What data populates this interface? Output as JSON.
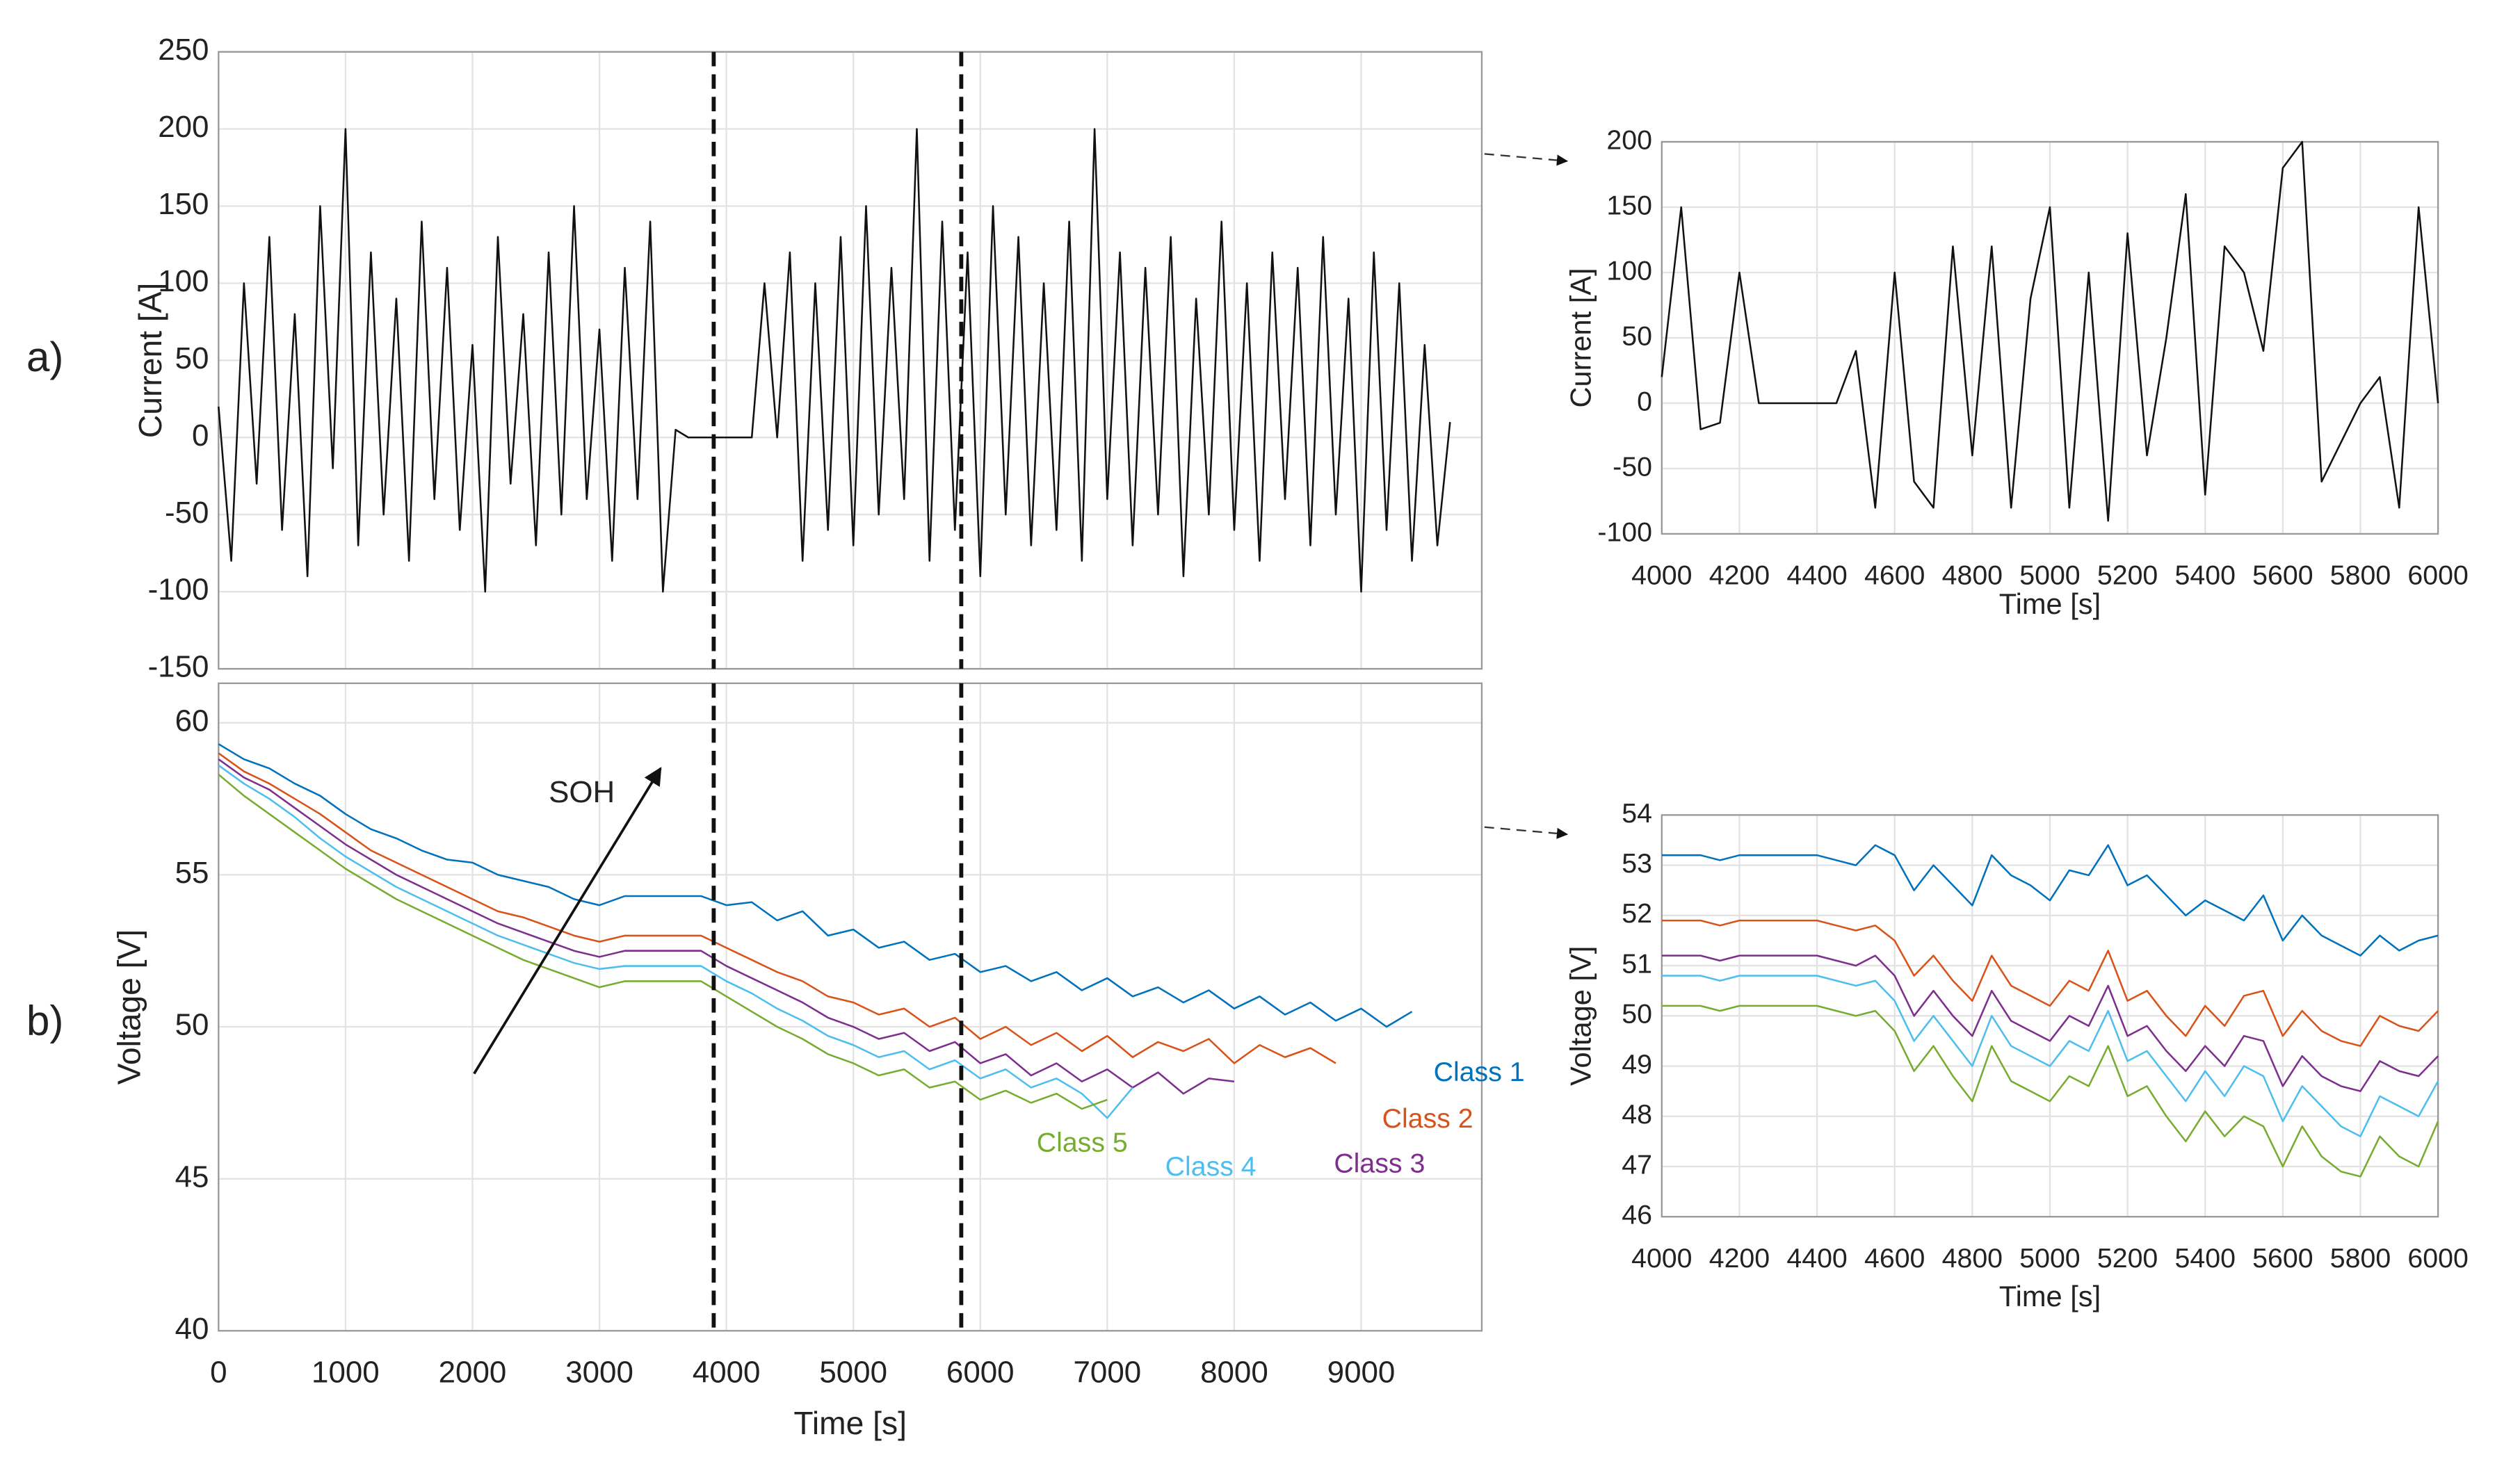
{
  "chart_data": [
    {
      "type": "line",
      "panel_label": "a)",
      "ylabel": "Current [A]",
      "xlim": [
        0,
        9950
      ],
      "xticks": [
        0,
        1000,
        2000,
        3000,
        4000,
        5000,
        6000,
        7000,
        8000,
        9000
      ],
      "ylim": [
        -150,
        250
      ],
      "yticks": [
        -150,
        -100,
        -50,
        0,
        50,
        100,
        150,
        200,
        250
      ],
      "grid": true,
      "markers_x": [
        3900,
        5850
      ],
      "x": [
        0,
        100,
        200,
        300,
        400,
        500,
        600,
        700,
        800,
        900,
        1000,
        1100,
        1200,
        1300,
        1400,
        1500,
        1600,
        1700,
        1800,
        1900,
        2000,
        2100,
        2200,
        2300,
        2400,
        2500,
        2600,
        2700,
        2800,
        2900,
        3000,
        3100,
        3200,
        3300,
        3400,
        3500,
        3600,
        3700,
        3800,
        3900,
        4000,
        4100,
        4200,
        4300,
        4400,
        4500,
        4600,
        4700,
        4800,
        4900,
        5000,
        5100,
        5200,
        5300,
        5400,
        5500,
        5600,
        5700,
        5800,
        5900,
        6000,
        6100,
        6200,
        6300,
        6400,
        6500,
        6600,
        6700,
        6800,
        6900,
        7000,
        7100,
        7200,
        7300,
        7400,
        7500,
        7600,
        7700,
        7800,
        7900,
        8000,
        8100,
        8200,
        8300,
        8400,
        8500,
        8600,
        8700,
        8800,
        8900,
        9000,
        9100,
        9200,
        9300,
        9400,
        9500,
        9600,
        9700
      ],
      "series": [
        {
          "color": "#111111",
          "values": [
            20,
            -80,
            100,
            -30,
            130,
            -60,
            80,
            -90,
            150,
            -20,
            200,
            -70,
            120,
            -50,
            90,
            -80,
            140,
            -40,
            110,
            -60,
            60,
            -100,
            130,
            -30,
            80,
            -70,
            120,
            -50,
            150,
            -40,
            70,
            -80,
            110,
            -40,
            140,
            -100,
            5,
            0,
            0,
            0,
            0,
            0,
            0,
            100,
            0,
            120,
            -80,
            100,
            -60,
            130,
            -70,
            150,
            -50,
            110,
            -40,
            200,
            -80,
            140,
            -60,
            120,
            -90,
            150,
            -50,
            130,
            -70,
            100,
            -60,
            140,
            -80,
            200,
            -40,
            120,
            -70,
            110,
            -50,
            130,
            -90,
            90,
            -50,
            140,
            -60,
            100,
            -80,
            120,
            -40,
            110,
            -70,
            130,
            -50,
            90,
            -100,
            120,
            -60,
            100,
            -80,
            60,
            -70,
            10
          ]
        }
      ]
    },
    {
      "type": "line",
      "panel_label": "b)",
      "ylabel": "Voltage [V]",
      "xlabel": "Time [s]",
      "annotation": "SOH",
      "xlim": [
        0,
        9950
      ],
      "xticks": [
        0,
        1000,
        2000,
        3000,
        4000,
        5000,
        6000,
        7000,
        8000,
        9000
      ],
      "ylim": [
        40,
        61.3
      ],
      "yticks": [
        40,
        45,
        50,
        55,
        60
      ],
      "grid": true,
      "markers_x": [
        3900,
        5850
      ],
      "x": [
        0,
        200,
        400,
        600,
        800,
        1000,
        1200,
        1400,
        1600,
        1800,
        2000,
        2200,
        2400,
        2600,
        2800,
        3000,
        3200,
        3400,
        3600,
        3800,
        4000,
        4200,
        4400,
        4600,
        4800,
        5000,
        5200,
        5400,
        5600,
        5800,
        6000,
        6200,
        6400,
        6600,
        6800,
        7000,
        7200,
        7400,
        7600,
        7800,
        8000,
        8200,
        8400,
        8600,
        8800,
        9000,
        9200,
        9400
      ],
      "series": [
        {
          "name": "Class 1",
          "color": "#0072bd",
          "values": [
            59.3,
            58.8,
            58.5,
            58.0,
            57.6,
            57.0,
            56.5,
            56.2,
            55.8,
            55.5,
            55.4,
            55.0,
            54.8,
            54.6,
            54.2,
            54.0,
            54.3,
            54.3,
            54.3,
            54.3,
            54.0,
            54.1,
            53.5,
            53.8,
            53.0,
            53.2,
            52.6,
            52.8,
            52.2,
            52.4,
            51.8,
            52.0,
            51.5,
            51.8,
            51.2,
            51.6,
            51.0,
            51.3,
            50.8,
            51.2,
            50.6,
            51.0,
            50.4,
            50.8,
            50.2,
            50.6,
            50.0,
            50.5
          ]
        },
        {
          "name": "Class 2",
          "color": "#d95319",
          "values": [
            59.0,
            58.4,
            58.0,
            57.5,
            57.0,
            56.4,
            55.8,
            55.4,
            55.0,
            54.6,
            54.2,
            53.8,
            53.6,
            53.3,
            53.0,
            52.8,
            53.0,
            53.0,
            53.0,
            53.0,
            52.6,
            52.2,
            51.8,
            51.5,
            51.0,
            50.8,
            50.4,
            50.6,
            50.0,
            50.3,
            49.6,
            50.0,
            49.4,
            49.8,
            49.2,
            49.7,
            49.0,
            49.5,
            49.2,
            49.6,
            48.8,
            49.4,
            49.0,
            49.3,
            48.8,
            null,
            null,
            null
          ]
        },
        {
          "name": "Class 3",
          "color": "#7e2f8e",
          "values": [
            58.8,
            58.2,
            57.8,
            57.2,
            56.6,
            56.0,
            55.5,
            55.0,
            54.6,
            54.2,
            53.8,
            53.4,
            53.1,
            52.8,
            52.5,
            52.3,
            52.5,
            52.5,
            52.5,
            52.5,
            52.0,
            51.6,
            51.2,
            50.8,
            50.3,
            50.0,
            49.6,
            49.8,
            49.2,
            49.5,
            48.8,
            49.1,
            48.4,
            48.8,
            48.2,
            48.6,
            48.0,
            48.5,
            47.8,
            48.3,
            48.2,
            null,
            null,
            null,
            null,
            null,
            null,
            null
          ]
        },
        {
          "name": "Class 4",
          "color": "#4dbeee",
          "values": [
            58.6,
            58.0,
            57.5,
            56.9,
            56.2,
            55.6,
            55.1,
            54.6,
            54.2,
            53.8,
            53.4,
            53.0,
            52.7,
            52.4,
            52.1,
            51.9,
            52.0,
            52.0,
            52.0,
            52.0,
            51.5,
            51.1,
            50.6,
            50.2,
            49.7,
            49.4,
            49.0,
            49.2,
            48.6,
            48.9,
            48.3,
            48.6,
            48.0,
            48.3,
            47.8,
            47.0,
            48.0,
            null,
            null,
            null,
            null,
            null,
            null,
            null,
            null,
            null,
            null,
            null
          ]
        },
        {
          "name": "Class 5",
          "color": "#77ac30",
          "values": [
            58.3,
            57.6,
            57.0,
            56.4,
            55.8,
            55.2,
            54.7,
            54.2,
            53.8,
            53.4,
            53.0,
            52.6,
            52.2,
            51.9,
            51.6,
            51.3,
            51.5,
            51.5,
            51.5,
            51.5,
            51.0,
            50.5,
            50.0,
            49.6,
            49.1,
            48.8,
            48.4,
            48.6,
            48.0,
            48.2,
            47.6,
            47.9,
            47.5,
            47.8,
            47.3,
            47.6,
            null,
            null,
            null,
            null,
            null,
            null,
            null,
            null,
            null,
            null,
            null,
            null
          ]
        }
      ]
    },
    {
      "type": "line",
      "ylabel": "Current [A]",
      "xlabel": "Time [s]",
      "xlim": [
        4000,
        6000
      ],
      "xticks": [
        4000,
        4200,
        4400,
        4600,
        4800,
        5000,
        5200,
        5400,
        5600,
        5800,
        6000
      ],
      "ylim": [
        -100,
        200
      ],
      "yticks": [
        -100,
        -50,
        0,
        50,
        100,
        150,
        200
      ],
      "grid": true,
      "x": [
        4000,
        4050,
        4100,
        4150,
        4200,
        4250,
        4300,
        4350,
        4400,
        4450,
        4500,
        4550,
        4600,
        4650,
        4700,
        4750,
        4800,
        4850,
        4900,
        4950,
        5000,
        5050,
        5100,
        5150,
        5200,
        5250,
        5300,
        5350,
        5400,
        5450,
        5500,
        5550,
        5600,
        5650,
        5700,
        5750,
        5800,
        5850,
        5900,
        5950,
        6000
      ],
      "series": [
        {
          "color": "#111111",
          "values": [
            20,
            150,
            -20,
            -15,
            100,
            0,
            0,
            0,
            0,
            0,
            40,
            -80,
            100,
            -60,
            -80,
            120,
            -40,
            120,
            -80,
            80,
            150,
            -80,
            100,
            -90,
            130,
            -40,
            50,
            160,
            -70,
            120,
            100,
            40,
            180,
            200,
            -60,
            -30,
            0,
            20,
            -80,
            150,
            0
          ]
        }
      ]
    },
    {
      "type": "line",
      "ylabel": "Voltage [V]",
      "xlabel": "Time [s]",
      "xlim": [
        4000,
        6000
      ],
      "xticks": [
        4000,
        4200,
        4400,
        4600,
        4800,
        5000,
        5200,
        5400,
        5600,
        5800,
        6000
      ],
      "ylim": [
        46,
        54
      ],
      "yticks": [
        46,
        47,
        48,
        49,
        50,
        51,
        52,
        53,
        54
      ],
      "grid": true,
      "x": [
        4000,
        4050,
        4100,
        4150,
        4200,
        4250,
        4300,
        4350,
        4400,
        4450,
        4500,
        4550,
        4600,
        4650,
        4700,
        4750,
        4800,
        4850,
        4900,
        4950,
        5000,
        5050,
        5100,
        5150,
        5200,
        5250,
        5300,
        5350,
        5400,
        5450,
        5500,
        5550,
        5600,
        5650,
        5700,
        5750,
        5800,
        5850,
        5900,
        5950,
        6000
      ],
      "series": [
        {
          "color": "#0072bd",
          "values": [
            53.2,
            53.2,
            53.2,
            53.1,
            53.2,
            53.2,
            53.2,
            53.2,
            53.2,
            53.1,
            53.0,
            53.4,
            53.2,
            52.5,
            53.0,
            52.6,
            52.2,
            53.2,
            52.8,
            52.6,
            52.3,
            52.9,
            52.8,
            53.4,
            52.6,
            52.8,
            52.4,
            52.0,
            52.3,
            52.1,
            51.9,
            52.4,
            51.5,
            52.0,
            51.6,
            51.4,
            51.2,
            51.6,
            51.3,
            51.5,
            51.6
          ]
        },
        {
          "color": "#d95319",
          "values": [
            51.9,
            51.9,
            51.9,
            51.8,
            51.9,
            51.9,
            51.9,
            51.9,
            51.9,
            51.8,
            51.7,
            51.8,
            51.5,
            50.8,
            51.2,
            50.7,
            50.3,
            51.2,
            50.6,
            50.4,
            50.2,
            50.7,
            50.5,
            51.3,
            50.3,
            50.5,
            50.0,
            49.6,
            50.2,
            49.8,
            50.4,
            50.5,
            49.6,
            50.1,
            49.7,
            49.5,
            49.4,
            50.0,
            49.8,
            49.7,
            50.1
          ]
        },
        {
          "color": "#7e2f8e",
          "values": [
            51.2,
            51.2,
            51.2,
            51.1,
            51.2,
            51.2,
            51.2,
            51.2,
            51.2,
            51.1,
            51.0,
            51.2,
            50.8,
            50.0,
            50.5,
            50.0,
            49.6,
            50.5,
            49.9,
            49.7,
            49.5,
            50.0,
            49.8,
            50.6,
            49.6,
            49.8,
            49.3,
            48.9,
            49.4,
            49.0,
            49.6,
            49.5,
            48.6,
            49.2,
            48.8,
            48.6,
            48.5,
            49.1,
            48.9,
            48.8,
            49.2
          ]
        },
        {
          "color": "#4dbeee",
          "values": [
            50.8,
            50.8,
            50.8,
            50.7,
            50.8,
            50.8,
            50.8,
            50.8,
            50.8,
            50.7,
            50.6,
            50.7,
            50.3,
            49.5,
            50.0,
            49.5,
            49.0,
            50.0,
            49.4,
            49.2,
            49.0,
            49.5,
            49.3,
            50.1,
            49.1,
            49.3,
            48.8,
            48.3,
            48.9,
            48.4,
            49.0,
            48.8,
            47.9,
            48.6,
            48.2,
            47.8,
            47.6,
            48.4,
            48.2,
            48.0,
            48.7
          ]
        },
        {
          "color": "#77ac30",
          "values": [
            50.2,
            50.2,
            50.2,
            50.1,
            50.2,
            50.2,
            50.2,
            50.2,
            50.2,
            50.1,
            50.0,
            50.1,
            49.7,
            48.9,
            49.4,
            48.8,
            48.3,
            49.4,
            48.7,
            48.5,
            48.3,
            48.8,
            48.6,
            49.4,
            48.4,
            48.6,
            48.0,
            47.5,
            48.1,
            47.6,
            48.0,
            47.8,
            47.0,
            47.8,
            47.2,
            46.9,
            46.8,
            47.6,
            47.2,
            47.0,
            47.9
          ]
        }
      ]
    }
  ]
}
